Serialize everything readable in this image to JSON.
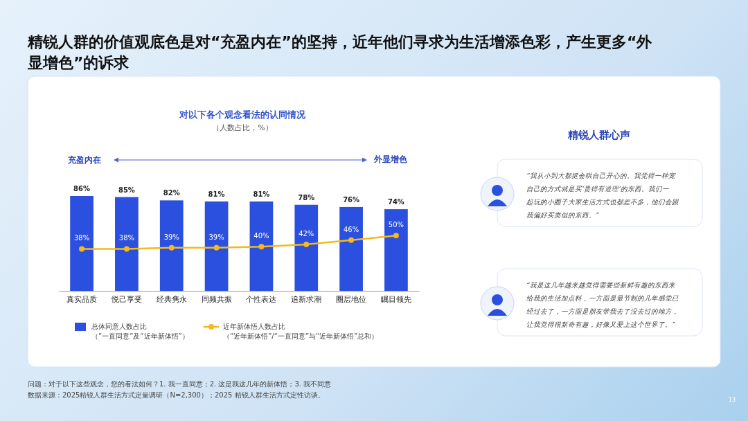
{
  "chart_data": {
    "type": "bar",
    "title": "精锐人群的价值观底色是对“充盈内在”的坚持，近年他们寻求为生活增添色彩，产生更多“外显增色”的诉求",
    "subtitle": "对以下各个观念看法的认同情况",
    "categories": [
      "真实品质",
      "悦己享受",
      "经典隽永",
      "同频共振",
      "个性表达",
      "追新求潮",
      "圈层地位",
      "瞩目领先"
    ],
    "series": [
      {
        "name": "总体同意人数占比（“一直同意”及“近年新体悟”）",
        "color": "#2b50e0",
        "values": [
          86,
          85,
          82,
          81,
          81,
          78,
          76,
          74
        ],
        "value_labels": [
          "86%",
          "85%",
          "82%",
          "81%",
          "81%",
          "78%",
          "76%",
          "74%"
        ]
      },
      {
        "name": "近年新体悟人数占比（“近年新体悟”/“一直同意”与“近年新体悟”总和）",
        "type": "line",
        "color": "#f5b91c",
        "values": [
          38,
          38,
          39,
          39,
          40,
          42,
          46,
          50
        ],
        "value_labels": [
          "38%",
          "38%",
          "39%",
          "39%",
          "40%",
          "42%",
          "46%",
          "50%"
        ]
      }
    ],
    "legend": "bottom",
    "marker": "circle",
    "line_style": "solid",
    "grid": false,
    "annotations": [
      "（人数占比，%）",
      "充盈内在",
      "外显增色",
      "精锐人群心声",
      "“我从小到大都挺会哄自己开心的。我觉得一种宠自己的方式就是买‘贵得有道理’的东西。我们一起玩的小圈子大家生活方式也都差不多，他们会跟我偏好买类似的东西。”",
      "“我是这几年越来越觉得需要些新鲜有趣的东西来给我的生活加点料，一方面是最节制的几年感觉已经过去了，一方面是朋友带我去了没去过的地方，让我觉得很新奇有趣，好像又爱上这个世界了。”",
      "问题：对于以下这些观念，您的看法如何？1. 我一直同意；2. 这是我这几年的新体悟；3. 我不同意",
      "数据来源：2025精锐人群生活方式定量调研（N=2,300）；2025 精锐人群生活方式定性访谈。",
      "13"
    ]
  }
}
